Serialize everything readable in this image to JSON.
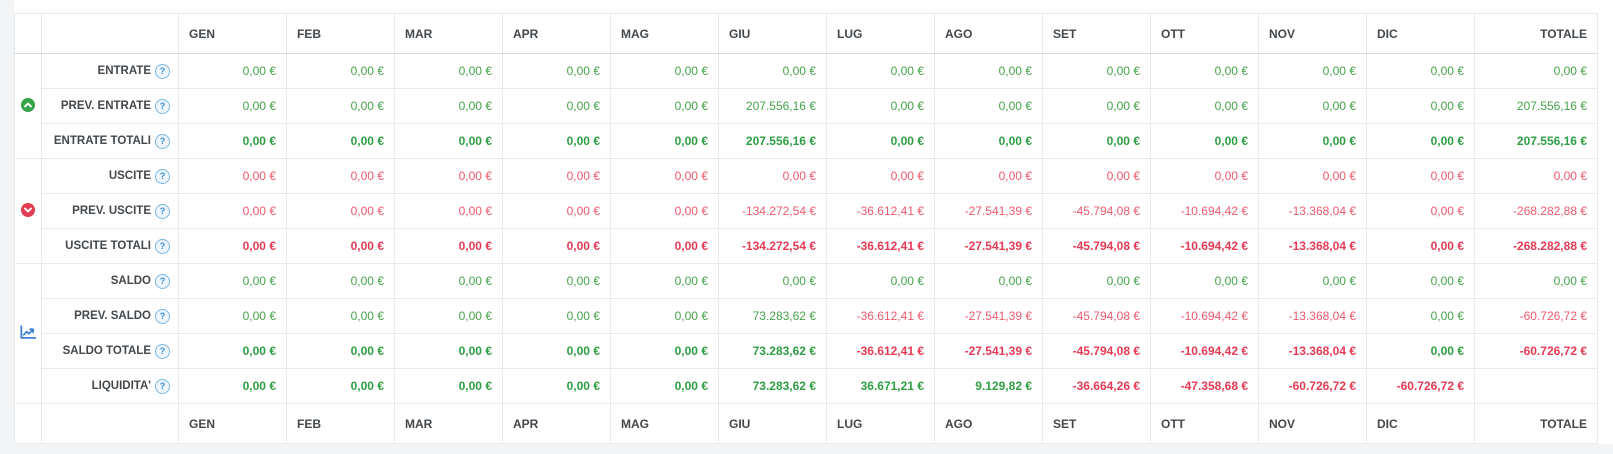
{
  "page": {
    "header_months": [
      "GEN",
      "FEB",
      "MAR",
      "APR",
      "MAG",
      "GIU",
      "LUG",
      "AGO",
      "SET",
      "OTT",
      "NOV",
      "DIC"
    ],
    "totale_label": "TOTALE",
    "help_symbol": "?",
    "colors": {
      "green": "#46a34b",
      "green_bold": "#2f9e44",
      "red": "#ee5a6e",
      "red_bold": "#e73b55",
      "group_green": "#35a54a",
      "group_red": "#e23c51",
      "chart_blue": "#3d7fd4",
      "help_blue": "#3f90d2",
      "header_text": "#43484d"
    },
    "groups": [
      {
        "name": "entrate",
        "icon": "circle-chevron-up-icon",
        "rows": 3
      },
      {
        "name": "uscite",
        "icon": "circle-chevron-down-icon",
        "rows": 3
      },
      {
        "name": "saldo",
        "icon": "chart-line-icon",
        "rows": 4
      }
    ],
    "rows": [
      {
        "label": "ENTRATE",
        "color_mode": "green",
        "bold": false,
        "values": [
          "0,00 €",
          "0,00 €",
          "0,00 €",
          "0,00 €",
          "0,00 €",
          "0,00 €",
          "0,00 €",
          "0,00 €",
          "0,00 €",
          "0,00 €",
          "0,00 €",
          "0,00 €"
        ],
        "totale": "0,00 €"
      },
      {
        "label": "PREV. ENTRATE",
        "color_mode": "green",
        "bold": false,
        "values": [
          "0,00 €",
          "0,00 €",
          "0,00 €",
          "0,00 €",
          "0,00 €",
          "207.556,16 €",
          "0,00 €",
          "0,00 €",
          "0,00 €",
          "0,00 €",
          "0,00 €",
          "0,00 €"
        ],
        "totale": "207.556,16 €"
      },
      {
        "label": "ENTRATE TOTALI",
        "color_mode": "green",
        "bold": true,
        "values": [
          "0,00 €",
          "0,00 €",
          "0,00 €",
          "0,00 €",
          "0,00 €",
          "207.556,16 €",
          "0,00 €",
          "0,00 €",
          "0,00 €",
          "0,00 €",
          "0,00 €",
          "0,00 €"
        ],
        "totale": "207.556,16 €"
      },
      {
        "label": "USCITE",
        "color_mode": "red",
        "bold": false,
        "values": [
          "0,00 €",
          "0,00 €",
          "0,00 €",
          "0,00 €",
          "0,00 €",
          "0,00 €",
          "0,00 €",
          "0,00 €",
          "0,00 €",
          "0,00 €",
          "0,00 €",
          "0,00 €"
        ],
        "totale": "0,00 €"
      },
      {
        "label": "PREV. USCITE",
        "color_mode": "red",
        "bold": false,
        "values": [
          "0,00 €",
          "0,00 €",
          "0,00 €",
          "0,00 €",
          "0,00 €",
          "-134.272,54 €",
          "-36.612,41 €",
          "-27.541,39 €",
          "-45.794,08 €",
          "-10.694,42 €",
          "-13.368,04 €",
          "0,00 €"
        ],
        "totale": "-268.282,88 €"
      },
      {
        "label": "USCITE TOTALI",
        "color_mode": "red",
        "bold": true,
        "values": [
          "0,00 €",
          "0,00 €",
          "0,00 €",
          "0,00 €",
          "0,00 €",
          "-134.272,54 €",
          "-36.612,41 €",
          "-27.541,39 €",
          "-45.794,08 €",
          "-10.694,42 €",
          "-13.368,04 €",
          "0,00 €"
        ],
        "totale": "-268.282,88 €"
      },
      {
        "label": "SALDO",
        "color_mode": "auto",
        "bold": false,
        "values": [
          "0,00 €",
          "0,00 €",
          "0,00 €",
          "0,00 €",
          "0,00 €",
          "0,00 €",
          "0,00 €",
          "0,00 €",
          "0,00 €",
          "0,00 €",
          "0,00 €",
          "0,00 €"
        ],
        "totale": "0,00 €"
      },
      {
        "label": "PREV. SALDO",
        "color_mode": "auto",
        "bold": false,
        "values": [
          "0,00 €",
          "0,00 €",
          "0,00 €",
          "0,00 €",
          "0,00 €",
          "73.283,62 €",
          "-36.612,41 €",
          "-27.541,39 €",
          "-45.794,08 €",
          "-10.694,42 €",
          "-13.368,04 €",
          "0,00 €"
        ],
        "totale": "-60.726,72 €"
      },
      {
        "label": "SALDO TOTALE",
        "color_mode": "auto",
        "bold": true,
        "values": [
          "0,00 €",
          "0,00 €",
          "0,00 €",
          "0,00 €",
          "0,00 €",
          "73.283,62 €",
          "-36.612,41 €",
          "-27.541,39 €",
          "-45.794,08 €",
          "-10.694,42 €",
          "-13.368,04 €",
          "0,00 €"
        ],
        "totale": "-60.726,72 €"
      },
      {
        "label": "LIQUIDITA'",
        "color_mode": "auto",
        "bold": true,
        "values": [
          "0,00 €",
          "0,00 €",
          "0,00 €",
          "0,00 €",
          "0,00 €",
          "73.283,62 €",
          "36.671,21 €",
          "9.129,82 €",
          "-36.664,26 €",
          "-47.358,68 €",
          "-60.726,72 €",
          "-60.726,72 €"
        ],
        "totale": ""
      }
    ]
  }
}
